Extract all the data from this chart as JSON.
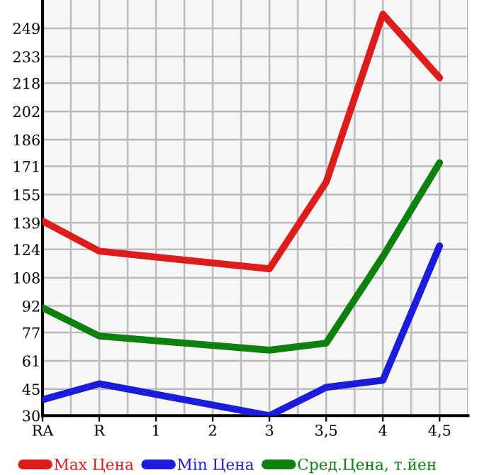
{
  "chart_data": {
    "type": "line",
    "categories": [
      "RA",
      "R",
      "1",
      "2",
      "3",
      "3,5",
      "4",
      "4,5"
    ],
    "series": [
      {
        "name": "Max Цена",
        "color": "#dd1c1c",
        "values": [
          140,
          123,
          null,
          null,
          113,
          162,
          257,
          221
        ]
      },
      {
        "name": "Min Цена",
        "color": "#1c1cdd",
        "values": [
          39,
          48,
          null,
          null,
          30,
          46,
          50,
          126
        ]
      },
      {
        "name": "Сред.Цена, т.йен",
        "color": "#0e800e",
        "values": [
          91,
          75,
          null,
          null,
          67,
          71,
          120,
          173
        ]
      }
    ],
    "ylim": [
      30,
      265
    ],
    "yticks": [
      30,
      45,
      61,
      77,
      92,
      108,
      124,
      139,
      155,
      171,
      186,
      202,
      218,
      233,
      249
    ],
    "grid": true,
    "legend": "bottom",
    "marker": "none",
    "line_style": "solid"
  }
}
